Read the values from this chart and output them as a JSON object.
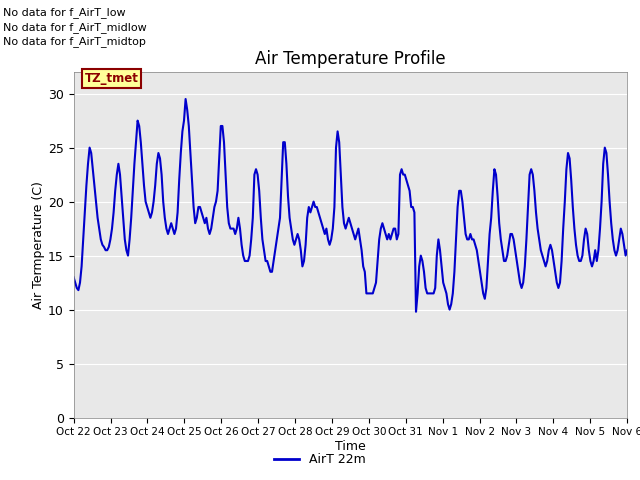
{
  "title": "Air Temperature Profile",
  "xlabel": "Time",
  "ylabel": "Air Termperature (C)",
  "line_color": "#0000CC",
  "line_width": 1.5,
  "ylim": [
    0,
    32
  ],
  "yticks": [
    0,
    5,
    10,
    15,
    20,
    25,
    30
  ],
  "background_color": "#E8E8E8",
  "legend_label": "AirT 22m",
  "annotations": [
    "No data for f_AirT_low",
    "No data for f_AirT_midlow",
    "No data for f_AirT_midtop"
  ],
  "tz_label": "TZ_tmet",
  "x_tick_labels": [
    "Oct 22",
    "Oct 23",
    "Oct 24",
    "Oct 25",
    "Oct 26",
    "Oct 27",
    "Oct 28",
    "Oct 29",
    "Oct 30",
    "Oct 31",
    "Nov 1",
    "Nov 2",
    "Nov 3",
    "Nov 4",
    "Nov 5",
    "Nov 6"
  ],
  "temp_values": [
    13.0,
    12.5,
    12.0,
    11.8,
    12.5,
    14.0,
    16.5,
    19.0,
    21.5,
    23.5,
    25.0,
    24.5,
    23.0,
    21.5,
    20.0,
    18.5,
    17.5,
    16.5,
    16.0,
    15.8,
    15.5,
    15.5,
    15.8,
    16.5,
    17.5,
    19.0,
    21.0,
    22.5,
    23.5,
    22.5,
    20.5,
    18.5,
    16.5,
    15.5,
    15.0,
    16.5,
    18.5,
    21.0,
    23.5,
    25.5,
    27.5,
    27.0,
    25.5,
    23.5,
    21.5,
    20.0,
    19.5,
    19.0,
    18.5,
    19.0,
    20.0,
    21.5,
    23.5,
    24.5,
    24.0,
    22.5,
    20.0,
    18.5,
    17.5,
    17.0,
    17.5,
    18.0,
    17.5,
    17.0,
    17.5,
    19.0,
    22.0,
    24.5,
    26.5,
    27.5,
    29.5,
    28.5,
    27.0,
    24.5,
    22.0,
    19.5,
    18.0,
    18.5,
    19.5,
    19.5,
    19.0,
    18.5,
    18.0,
    18.5,
    17.5,
    17.0,
    17.5,
    18.5,
    19.5,
    20.0,
    21.0,
    24.0,
    27.0,
    27.0,
    25.5,
    22.5,
    19.5,
    18.0,
    17.5,
    17.5,
    17.5,
    17.0,
    17.5,
    18.5,
    17.5,
    16.0,
    15.0,
    14.5,
    14.5,
    14.5,
    15.0,
    16.5,
    18.5,
    22.5,
    23.0,
    22.5,
    21.0,
    18.5,
    16.5,
    15.5,
    14.5,
    14.5,
    14.0,
    13.5,
    13.5,
    14.5,
    15.5,
    16.5,
    17.5,
    18.5,
    22.0,
    25.5,
    25.5,
    23.5,
    20.5,
    18.5,
    17.5,
    16.5,
    16.0,
    16.5,
    17.0,
    16.5,
    15.5,
    14.0,
    14.5,
    16.0,
    18.5,
    19.5,
    19.0,
    19.5,
    20.0,
    19.5,
    19.5,
    19.0,
    18.5,
    18.0,
    17.5,
    17.0,
    17.5,
    16.5,
    16.0,
    16.5,
    17.5,
    19.5,
    25.0,
    26.5,
    25.5,
    22.5,
    19.5,
    18.0,
    17.5,
    18.0,
    18.5,
    18.0,
    17.5,
    17.0,
    16.5,
    17.0,
    17.5,
    16.5,
    15.5,
    14.0,
    13.5,
    11.5,
    11.5,
    11.5,
    11.5,
    11.5,
    12.0,
    12.5,
    14.5,
    16.5,
    17.5,
    18.0,
    17.5,
    17.0,
    16.5,
    17.0,
    16.5,
    17.0,
    17.5,
    17.5,
    16.5,
    17.0,
    22.5,
    23.0,
    22.5,
    22.5,
    22.0,
    21.5,
    21.0,
    19.5,
    19.5,
    19.0,
    9.8,
    11.5,
    14.0,
    15.0,
    14.5,
    13.5,
    12.0,
    11.5,
    11.5,
    11.5,
    11.5,
    11.5,
    12.0,
    15.0,
    16.5,
    15.5,
    14.0,
    12.5,
    12.0,
    11.5,
    10.5,
    10.0,
    10.5,
    11.5,
    13.5,
    16.5,
    19.5,
    21.0,
    21.0,
    20.0,
    18.5,
    17.0,
    16.5,
    16.5,
    17.0,
    16.5,
    16.5,
    16.0,
    15.5,
    14.5,
    13.5,
    12.5,
    11.5,
    11.0,
    12.0,
    14.5,
    17.0,
    18.5,
    21.0,
    23.0,
    22.5,
    20.5,
    18.0,
    16.5,
    15.5,
    14.5,
    14.5,
    15.0,
    16.0,
    17.0,
    17.0,
    16.5,
    15.5,
    14.5,
    13.5,
    12.5,
    12.0,
    12.5,
    14.0,
    16.5,
    19.5,
    22.5,
    23.0,
    22.5,
    21.0,
    19.0,
    17.5,
    16.5,
    15.5,
    15.0,
    14.5,
    14.0,
    14.5,
    15.5,
    16.0,
    15.5,
    14.5,
    13.5,
    12.5,
    12.0,
    12.5,
    14.5,
    17.5,
    20.0,
    23.0,
    24.5,
    24.0,
    22.0,
    19.5,
    17.5,
    16.0,
    15.0,
    14.5,
    14.5,
    15.0,
    16.5,
    17.5,
    17.0,
    15.5,
    14.5,
    14.0,
    14.5,
    15.5,
    14.5,
    15.5,
    17.5,
    20.0,
    23.5,
    25.0,
    24.5,
    22.5,
    20.0,
    18.0,
    16.5,
    15.5,
    15.0,
    15.5,
    16.5,
    17.5,
    17.0,
    16.0,
    15.0,
    15.5
  ]
}
